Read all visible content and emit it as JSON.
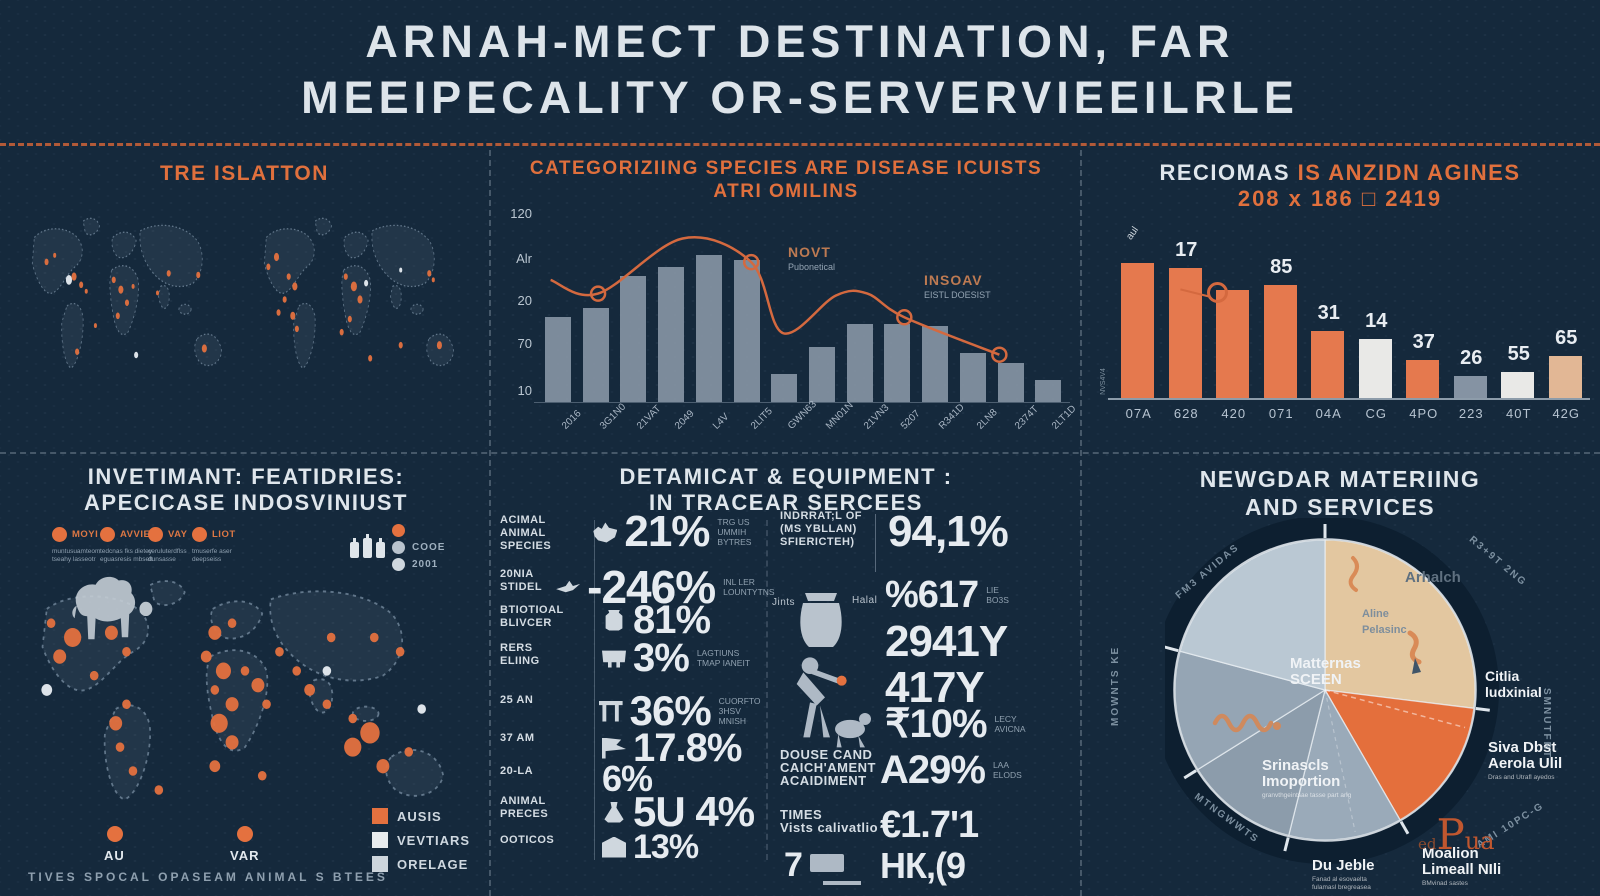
{
  "colors": {
    "background": "#15293c",
    "accent": "#e4713f",
    "bar_gray": "#8b99a9",
    "line_orange": "#d4693f",
    "bar_orange": "#e5794e",
    "text_light": "#c7d1da"
  },
  "header": {
    "line1": "ARNAH-MECT DESTINATION, FAR",
    "line2": "MEEIPECALITY OR-SERVERVIEEILRLE"
  },
  "map_panel": {
    "title": "TRE ISLATTON"
  },
  "species_panel": {
    "title1": "CATEGORIZIING SPECIES ARE DISEASE ICUISTS",
    "title2": "ATRI OMILINS",
    "ann1_label": "NOVT",
    "ann1_sub": "Pubonetical",
    "ann2_label": "INSOAV",
    "ann2_sub": "EISTL DOESIST"
  },
  "regions_panel": {
    "title_white": "RECIOMAS",
    "title_orange": " IS ANZIDN AGINES",
    "subtitle": "208 x 186 □ 2419",
    "rotated_label": "aul",
    "side_note": "NVS4V4"
  },
  "invest_panel": {
    "title1": "INVETIMANT: FEATIDRIES:",
    "title2": "APECICASE INDOSVINIUST",
    "circles": [
      {
        "label": "MOYI",
        "caption": "muntusuamteom\ntseahy lasseotr"
      },
      {
        "label": "AVVIES",
        "caption": "tedcnas fks dietey\neguasresis mbseft"
      },
      {
        "label": "VAY",
        "caption": "ceruluterdflss\ndunsasse"
      },
      {
        "label": "LIOT",
        "caption": "tmuserfe aser\ndeepseiss"
      }
    ],
    "side_legend": [
      {
        "label": "",
        "color": "#e4713f"
      },
      {
        "label": "COOE",
        "color": "#b9c3cd"
      },
      {
        "label": "2001",
        "color": "#cfd7de"
      }
    ],
    "legend": [
      {
        "label": "AUSIS",
        "color": "#e4713f"
      },
      {
        "label": "VEVTIARS",
        "color": "#e7ebee"
      },
      {
        "label": "ORELAGE",
        "color": "#cdd5dc"
      }
    ],
    "point1": "AU",
    "point2": "VAR",
    "footer": "TIVES SPOCAL OPASEAM ANIMAL S BTEES"
  },
  "equip_panel": {
    "title1": "DETAMICAT & EQUIPMENT :",
    "title2": "IN TRACEAR SERCEES",
    "left_rows": [
      {
        "label": "ACIMAL\nANIMAL\nSPECIES",
        "value": "21%",
        "note": "TRG US\nUMMIH BYTRES",
        "icon": "goat-icon"
      },
      {
        "label": "20NIA\nSTIDEL",
        "value": "-246%",
        "note": "INL LER\nLOUNTYTNS",
        "icon": "bird-icon"
      },
      {
        "label": "BTIOTIOAL\nBLIVCER",
        "value": "81%",
        "note": "",
        "icon": "jar-icon"
      },
      {
        "label": "RERS\nELIING",
        "value": "3%",
        "note": "LAGTIUNS\nTMAP IANEIT",
        "icon": "cart-icon"
      },
      {
        "label": "25 AN",
        "value": "36%",
        "note": "CUORFTO\n3HSV MNISH",
        "icon": "table-icon"
      },
      {
        "label": "37 AM",
        "value": "17.8%",
        "note": "",
        "icon": "flag-icon"
      },
      {
        "label": "20-LA",
        "value": "6%",
        "note": "",
        "icon": "none"
      },
      {
        "label": "ANIMAL\nPRECES",
        "value": "5U 4%",
        "note": "",
        "icon": "flask-icon"
      },
      {
        "label": "OOTICOS",
        "value": "13%",
        "note": "",
        "icon": "tag-icon"
      }
    ],
    "right": {
      "head_label": "INDRRAT;L OF\n(MS YBLLAN)\nSFIERICTEH)",
      "head_value": "94,1%",
      "jints": "Jints",
      "halal": "Halal",
      "v2": "%617",
      "v2_note": "LIE\nBO3S",
      "v3": "2941Y",
      "v4": "417Y",
      "v5": "₹10%",
      "v5_note": "LECY\nAVICNA",
      "douse_label": "DOUSE CAND\nCAICH'AMENT\nACAIDIMENT",
      "v6": "A29%",
      "v6_note": "LAA\nELODS",
      "times_label": "TIMES\nVists calivatlio",
      "v7": "€1.7'1",
      "times_value": "7",
      "v8": "НК,(9"
    }
  },
  "pie_panel": {
    "title1": "NEWGDAR MATERIING",
    "title2": "AND SERVICES",
    "outer_labels": {
      "tl": "FM3 AVIDAS",
      "tr": "R3+9T 2NG",
      "r": "SMNUTFRT",
      "br": "AMI 10PC-G",
      "bl": "MTNGWWTS",
      "l": "MOWNTS KE"
    }
  },
  "logo": {
    "small": "ed",
    "cap": "P",
    "rest": "ua"
  },
  "chart_data": [
    {
      "type": "bar",
      "title": "CATEGORIZIING SPECIES ARE DISEASE ICUISTS ATRI OMILINS",
      "categories": [
        "2016",
        "3G1N0",
        "21VAT",
        "2049",
        "L4V",
        "2LIT5",
        "GWN63",
        "MN01N",
        "21VN3",
        "5207",
        "R341D",
        "2LN8",
        "2374T",
        "2LT1D"
      ],
      "values": [
        57,
        63,
        84,
        90,
        98,
        95,
        19,
        37,
        52,
        52,
        51,
        33,
        26,
        15
      ],
      "y_ticks": [
        "120",
        "Alr",
        "20",
        "70",
        "10"
      ],
      "ylim": [
        0,
        120
      ],
      "xlabel": "",
      "ylabel": "",
      "bar_color": "#8b99a9",
      "line_series": {
        "name": "trend",
        "color": "#d4693f",
        "points_pct": [
          [
            2,
            62
          ],
          [
            11,
            55
          ],
          [
            27,
            83
          ],
          [
            40,
            71
          ],
          [
            46,
            35
          ],
          [
            56,
            54
          ],
          [
            62,
            55
          ],
          [
            69,
            43
          ],
          [
            87,
            24
          ]
        ],
        "marker_indices": [
          1,
          3,
          7,
          8
        ]
      },
      "annotations": [
        {
          "label": "NOVT",
          "sub": "Pubonetical"
        },
        {
          "label": "INSOAV",
          "sub": "EISTL DOESIST"
        }
      ]
    },
    {
      "type": "bar",
      "title": "RECIOMAS IS ANZIDN AGINES 208 x 186 2419",
      "categories": [
        "07A",
        "628",
        "420",
        "071",
        "04A",
        "CG",
        "4PO",
        "223",
        "40T",
        "42G"
      ],
      "values": [
        100,
        96,
        80,
        84,
        50,
        44,
        28,
        16,
        19,
        31
      ],
      "bar_labels": [
        "",
        "17",
        "",
        "85",
        "31",
        "14",
        "37",
        "26",
        "55",
        "65"
      ],
      "colors": [
        "#e5794e",
        "#e5794e",
        "#e5794e",
        "#e5794e",
        "#e5794e",
        "#e9e9e7",
        "#e5794e",
        "#8593a3",
        "#e9e9e7",
        "#e2b795"
      ]
    },
    {
      "type": "pie",
      "title": "NEWGDAR MATERIING AND SERVICES",
      "slices": [
        {
          "label": "Arhalch",
          "sublabel": "Citlia\nludxinial",
          "color": "#e3c7a0",
          "start_deg": 0,
          "end_deg": 97,
          "pct": 27.0
        },
        {
          "label": "Siva Dbst\nAerola Ulil",
          "sublabel": "",
          "caption": "Dras and Utrafl ayedos",
          "color": "#e46f3c",
          "start_deg": 97,
          "end_deg": 150,
          "pct": 14.7
        },
        {
          "label": "Moalion\nLimeall NIli",
          "sublabel": "",
          "caption": "BMvinad sastes",
          "color": "#9aaab9",
          "start_deg": 150,
          "end_deg": 194,
          "pct": 12.2
        },
        {
          "label": "Du Jeble",
          "sublabel": "",
          "caption": "Fanad al esovaelta\nfulamasl bregreasea",
          "color": "#8c9cab",
          "start_deg": 194,
          "end_deg": 238,
          "pct": 12.2
        },
        {
          "label": "Srinascls\nImoportion",
          "sublabel": "",
          "caption": "granvthgeintsae tasse part ang",
          "color": "#95a5b4",
          "start_deg": 238,
          "end_deg": 285,
          "pct": 13.1
        },
        {
          "label": "Matternas\nSCEEN",
          "sublabel": "Aline\nPelasinc",
          "color": "#bac8d3",
          "start_deg": 285,
          "end_deg": 360,
          "pct": 20.8
        }
      ]
    }
  ]
}
